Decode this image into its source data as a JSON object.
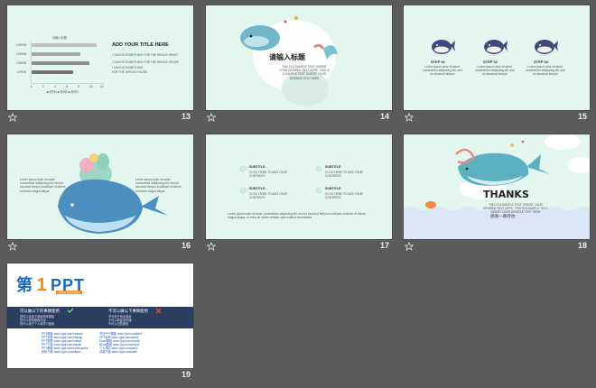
{
  "slides": [
    {
      "number": "13",
      "chart_title": "请输入标题",
      "title": "ADD YOUR TITLE HERE",
      "line1": "I CAN DO SOMETHING FOR THE WHOLE HEART",
      "line2": "I CAN DO SOMETHING FOR THE WHOLE HOUSE",
      "line3": "I CAN DO SOMETHING",
      "line4": "FOR THE WHOLE HOUSE",
      "y_labels": [
        "LOREM",
        "LOREM",
        "LOREM",
        "LOREM"
      ],
      "x_labels": [
        "0",
        "2",
        "4",
        "6",
        "8",
        "10",
        "12"
      ],
      "legend": "■ 系列1 ■ 系列2 ■ 系列3"
    },
    {
      "number": "14",
      "section_no": "04",
      "title": "请输入标题",
      "body": "THIS IS A SAMPLE TEXT. INSERT YOUR DESIRED TEXT HERE. THIS IS A SAMPLE TEXT. INSERT YOUR DESIRED TEXT HERE"
    },
    {
      "number": "15",
      "steps": [
        {
          "label": "STEP 01",
          "text": "Lorem ipsum dolor sit amet, consectetur adipiscing elit, sed do eiusmod tempor"
        },
        {
          "label": "STEP 02",
          "text": "Lorem ipsum dolor sit amet, consectetur adipiscing elit, sed do eiusmod tempor"
        },
        {
          "label": "STEP 03",
          "text": "Lorem ipsum dolor sit amet, consectetur adipiscing elit, sed do eiusmod tempor"
        }
      ]
    },
    {
      "number": "16",
      "left_text": "Lorem ipsum dolor sit amet, consectetur adipiscing elit, sed do eiusmod tempor incididunt ut labore et dolore magna aliqua.",
      "right_text": "Lorem ipsum dolor sit amet, consectetur adipiscing elit, sed do eiusmod tempor incididunt ut labore et dolore magna aliqua."
    },
    {
      "number": "17",
      "items": [
        {
          "title": "SUBTITLE",
          "text": "CLICK HERE TO ADD YOUR CONTENTS"
        },
        {
          "title": "SUBTITLE",
          "text": "CLICK HERE TO ADD YOUR CONTENTS"
        },
        {
          "title": "SUBTITLE",
          "text": "CLICK HERE TO ADD YOUR CONTENTS"
        },
        {
          "title": "SUBTITLE",
          "text": "CLICK HERE TO ADD YOUR CONTENTS"
        }
      ],
      "footer": "Lorem ipsum dolor sit amet, consectetur adipiscing elit, sed do eiusmod tempor incididunt ut labore et dolore magna aliqua. Ut enim ad minim veniam, quis nostrud exercitation."
    },
    {
      "number": "18",
      "title": "THANKS",
      "subtitle": "THIS IS A SAMPLE TEXT. INSERT YOUR DESIRED TEXT HERE. THIS IS A SAMPLE TEXT. INSERT YOUR DESIRED TEXT HERE",
      "cn_text": "感谢一路有你"
    },
    {
      "number": "19",
      "logo_cn": "第",
      "logo_num": "1",
      "logo_ppt": "PPT",
      "logo_url": "www.1ppt.com",
      "allowed_title": "可以做以下的事情使用",
      "forbidden_title": "不可以做以下事情使用",
      "allowed_items": [
        "您可以免费下载使用本模板",
        "您可以修改模板内容",
        "您可以用于个人和学习使用"
      ],
      "forbidden_items": [
        "不可用于商业用途",
        "不可以转载或传播",
        "不可以出售模板"
      ],
      "links_left": [
        "PPT模板 www.1ppt.com/moban/",
        "PPT背景 www.1ppt.com/beijing/",
        "PPT图表 www.1ppt.com/tubiao/",
        "PPT下载 www.1ppt.com/xiazai/",
        "PPT教程 www.1ppt.com/powerpoint/",
        "资料下载 www.1ppt.com/ziliao/"
      ],
      "links_right": [
        "节日PPT模板 www.1ppt.com/jieri/",
        "PPT素材 www.1ppt.com/sucai/",
        "Excel模板 www.1ppt.com/excel/",
        "Word模板 www.1ppt.com/word/",
        "个人简历 www.1ppt.com/jianli/",
        "试卷下载 www.1ppt.com/shiti/"
      ]
    }
  ],
  "colors": {
    "background": "#5b5b5b",
    "slide_mint": "#e3f6ef",
    "whale_blue": "#4a8fbf",
    "navy": "#2c3e60",
    "logo_orange": "#f08a1c",
    "logo_blue": "#1a6bbd"
  }
}
